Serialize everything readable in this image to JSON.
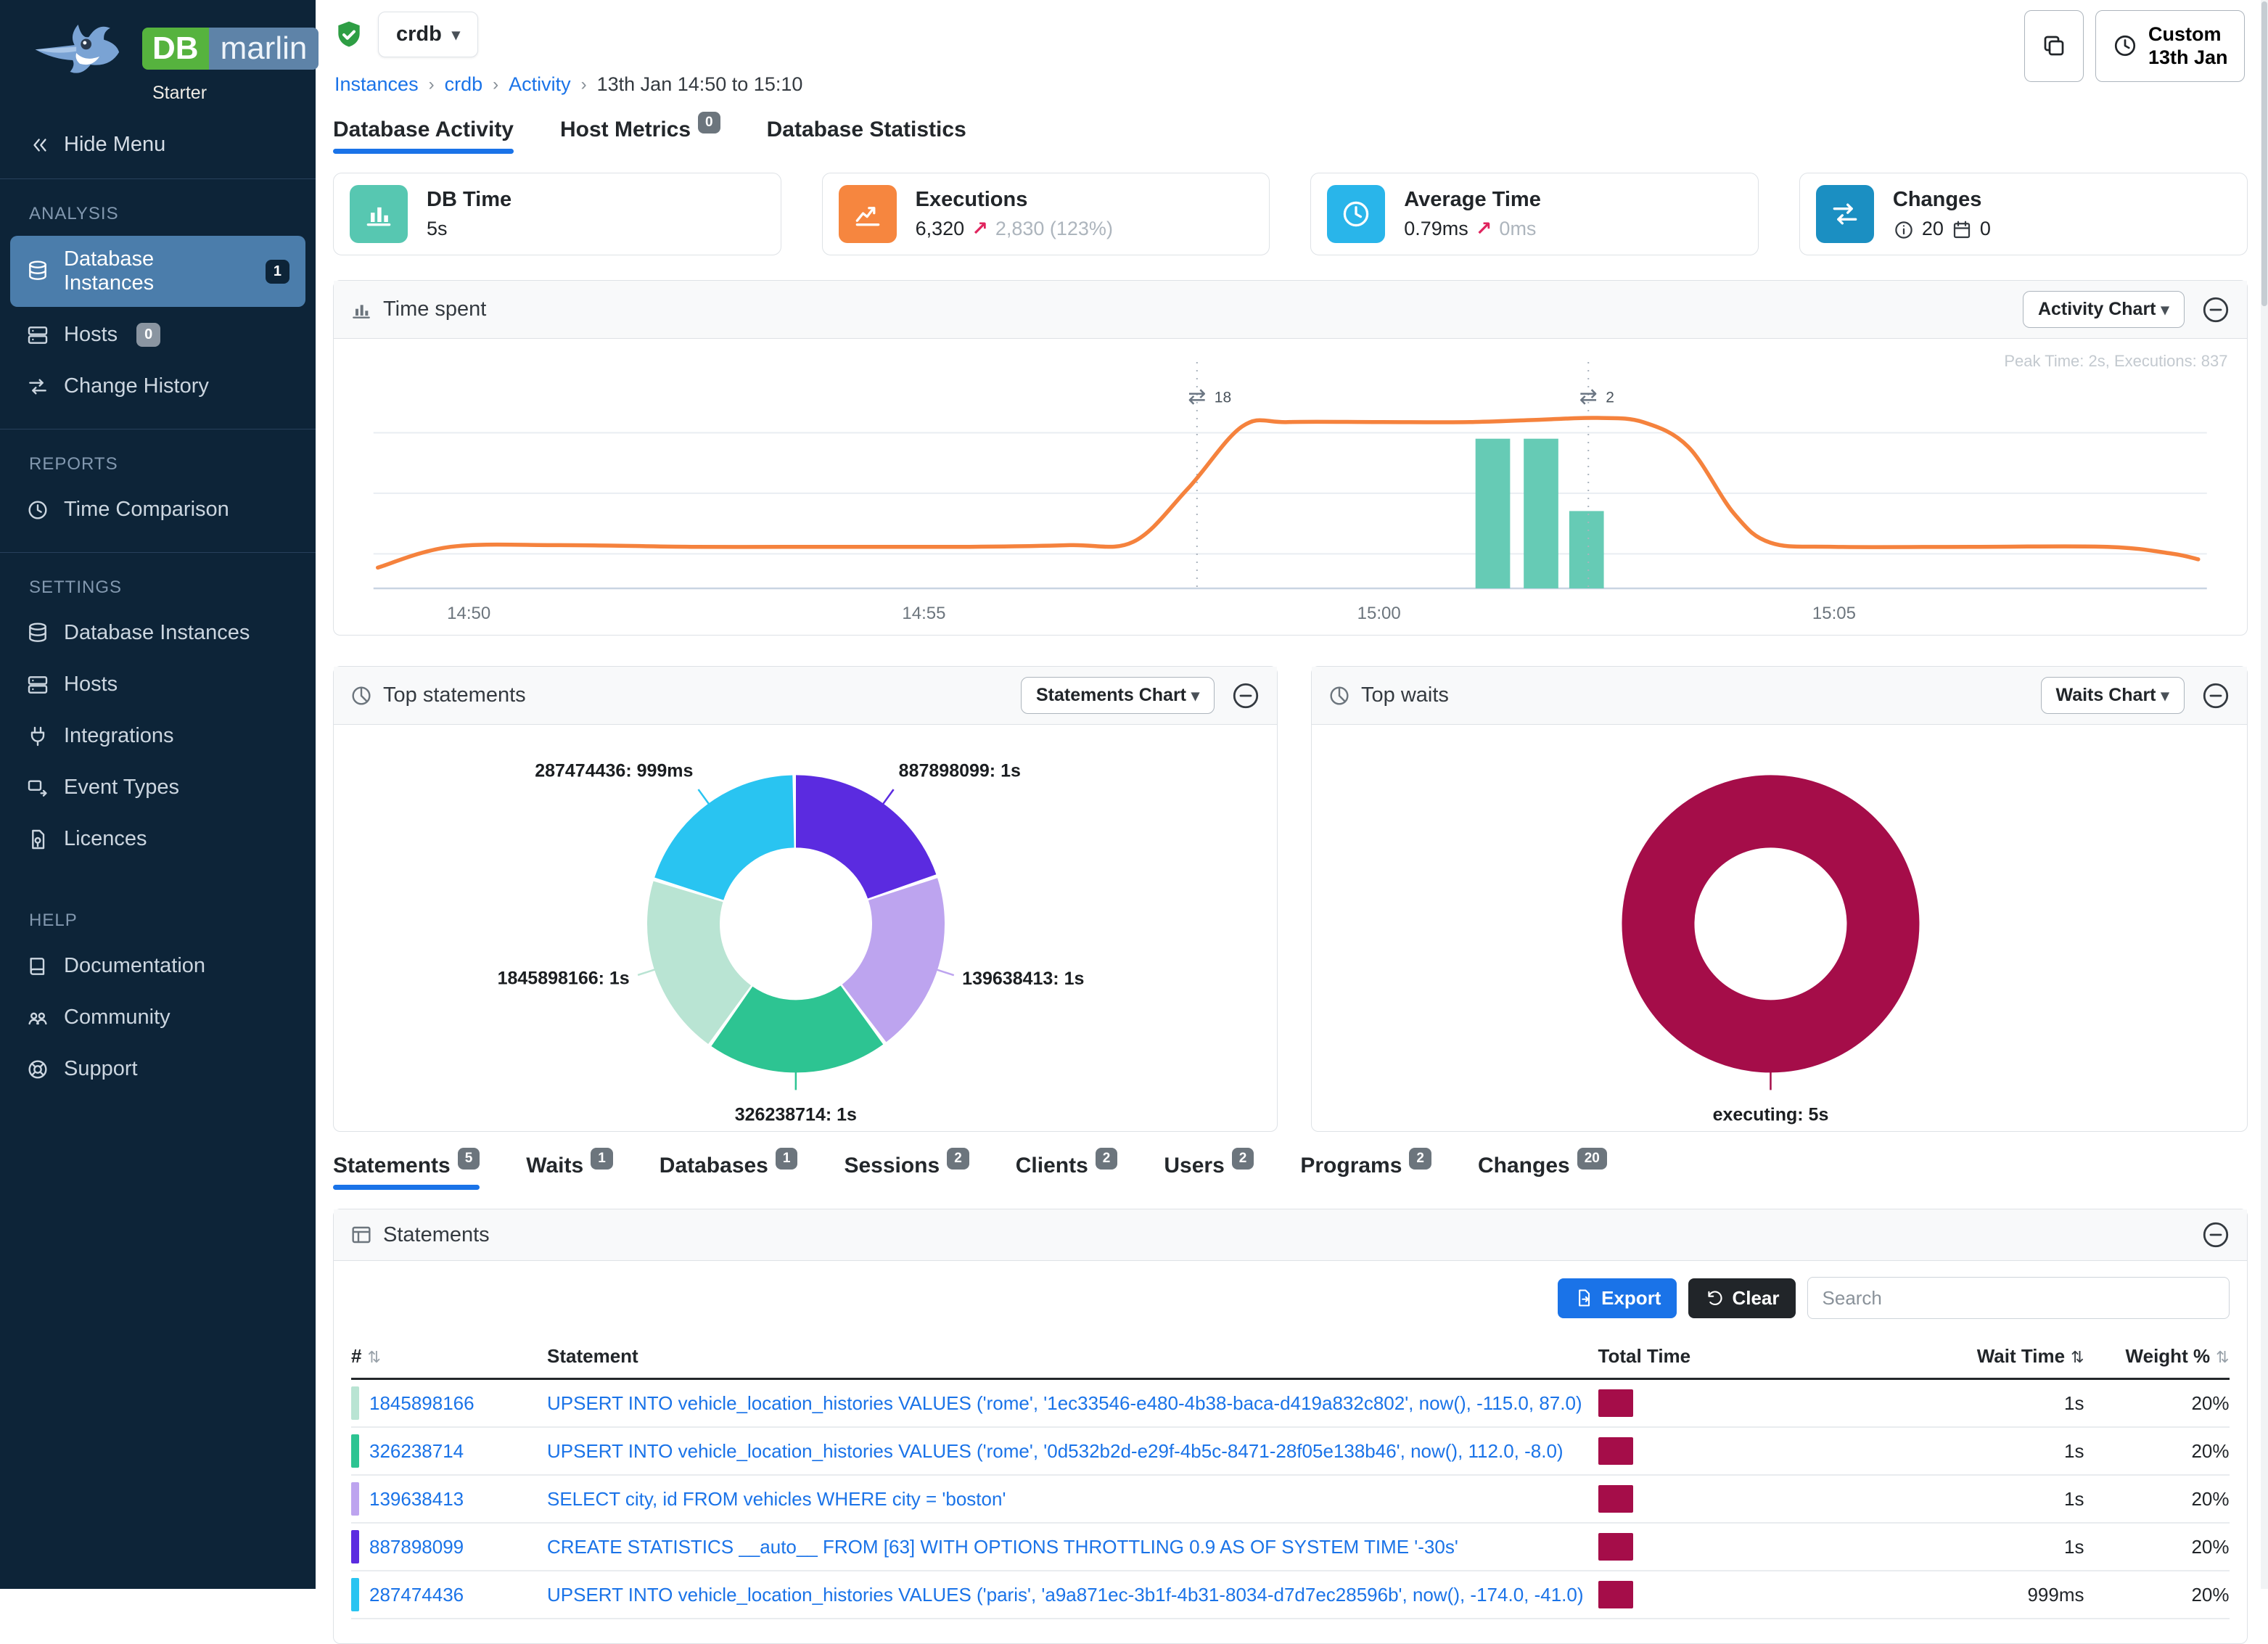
{
  "app": {
    "brand_db": "DB",
    "brand_marlin": "marlin",
    "tier": "Starter"
  },
  "colors": {
    "accent": "#1a73e8",
    "wait_maroon": "#a50d49",
    "line_orange": "#f5823d",
    "bar_teal": "#66cbb5",
    "sidebar_bg": "#0d2438",
    "active_item": "#4b7dab"
  },
  "sidebar": {
    "hide_menu_label": "Hide Menu",
    "sections": [
      {
        "title": "ANALYSIS",
        "divider_after": true,
        "items": [
          {
            "label": "Database Instances",
            "icon": "database",
            "badge": "1",
            "badge_style": "dark",
            "active": true
          },
          {
            "label": "Hosts",
            "icon": "server",
            "badge": "0",
            "badge_style": "gray"
          },
          {
            "label": "Change History",
            "icon": "swap"
          }
        ]
      },
      {
        "title": "REPORTS",
        "divider_after": true,
        "items": [
          {
            "label": "Time Comparison",
            "icon": "clock"
          }
        ]
      },
      {
        "title": "SETTINGS",
        "divider_after": false,
        "items": [
          {
            "label": "Database Instances",
            "icon": "database"
          },
          {
            "label": "Hosts",
            "icon": "server"
          },
          {
            "label": "Integrations",
            "icon": "plug"
          },
          {
            "label": "Event Types",
            "icon": "event"
          },
          {
            "label": "Licences",
            "icon": "licence"
          }
        ]
      },
      {
        "title": "HELP",
        "divider_after": false,
        "items": [
          {
            "label": "Documentation",
            "icon": "book"
          },
          {
            "label": "Community",
            "icon": "people"
          },
          {
            "label": "Support",
            "icon": "lifebuoy"
          }
        ]
      }
    ]
  },
  "topbar": {
    "instance": "crdb",
    "breadcrumb": [
      {
        "label": "Instances",
        "link": true
      },
      {
        "label": "crdb",
        "link": true
      },
      {
        "label": "Activity",
        "link": true
      },
      {
        "label": "13th Jan 14:50 to 15:10",
        "link": false
      }
    ],
    "custom_range_line1": "Custom",
    "custom_range_line2": "13th Jan"
  },
  "tabs": [
    {
      "label": "Database Activity",
      "active": true
    },
    {
      "label": "Host Metrics",
      "badge": "0"
    },
    {
      "label": "Database Statistics"
    }
  ],
  "cards": [
    {
      "title": "DB Time",
      "icon": "barchart",
      "icon_bg": "#57c7b1",
      "kind": "plain",
      "value": "5s"
    },
    {
      "title": "Executions",
      "icon": "linechart",
      "icon_bg": "#f6863f",
      "kind": "delta",
      "value": "6,320",
      "delta": "2,830 (123%)"
    },
    {
      "title": "Average Time",
      "icon": "clock",
      "icon_bg": "#29b5ea",
      "kind": "delta",
      "value": "0.79ms",
      "delta": "0ms"
    },
    {
      "title": "Changes",
      "icon": "swap",
      "icon_bg": "#1b8fc2",
      "kind": "changes",
      "info_count": "20",
      "calendar_count": "0"
    }
  ],
  "panels": {
    "time_spent": {
      "title": "Time spent",
      "button": "Activity Chart",
      "peak_note": "Peak Time: 2s, Executions: 837"
    },
    "top_statements": {
      "title": "Top statements",
      "button": "Statements Chart"
    },
    "top_waits": {
      "title": "Top waits",
      "button": "Waits Chart"
    }
  },
  "detail_tabs": [
    {
      "label": "Statements",
      "badge": "5",
      "active": true
    },
    {
      "label": "Waits",
      "badge": "1"
    },
    {
      "label": "Databases",
      "badge": "1"
    },
    {
      "label": "Sessions",
      "badge": "2"
    },
    {
      "label": "Clients",
      "badge": "2"
    },
    {
      "label": "Users",
      "badge": "2"
    },
    {
      "label": "Programs",
      "badge": "2"
    },
    {
      "label": "Changes",
      "badge": "20"
    }
  ],
  "statements_panel": {
    "title": "Statements",
    "export_label": "Export",
    "clear_label": "Clear",
    "search_placeholder": "Search",
    "columns": [
      "#",
      "Statement",
      "Total Time",
      "Wait Time",
      "Weight %"
    ],
    "rows": [
      {
        "id": "1845898166",
        "swatch": "#b9e4d3",
        "statement": "UPSERT INTO vehicle_location_histories VALUES ('rome', '1ec33546-e480-4b38-baca-d419a832c802', now(), -115.0, 87.0)",
        "total_time_frac": 1,
        "wait_time": "1s",
        "weight": "20%"
      },
      {
        "id": "326238714",
        "swatch": "#2dc492",
        "statement": "UPSERT INTO vehicle_location_histories VALUES ('rome', '0d532b2d-e29f-4b5c-8471-28f05e138b46', now(), 112.0, -8.0)",
        "total_time_frac": 1,
        "wait_time": "1s",
        "weight": "20%"
      },
      {
        "id": "139638413",
        "swatch": "#bda4ef",
        "statement": "SELECT city, id FROM vehicles WHERE city = 'boston'",
        "total_time_frac": 1,
        "wait_time": "1s",
        "weight": "20%"
      },
      {
        "id": "887898099",
        "swatch": "#5b2be0",
        "statement": "CREATE STATISTICS __auto__ FROM [63] WITH OPTIONS THROTTLING 0.9 AS OF SYSTEM TIME '-30s'",
        "total_time_frac": 1,
        "wait_time": "1s",
        "weight": "20%"
      },
      {
        "id": "287474436",
        "swatch": "#29c4f1",
        "statement": "UPSERT INTO vehicle_location_histories VALUES ('paris', 'a9a871ec-3b1f-4b31-8034-d7d7ec28596b', now(), -174.0, -41.0)",
        "total_time_frac": 0.999,
        "wait_time": "999ms",
        "weight": "20%"
      }
    ]
  },
  "chart_data": [
    {
      "type": "line",
      "title": "Time spent",
      "x_ticks": [
        {
          "label": "14:50",
          "t": 1
        },
        {
          "label": "14:55",
          "t": 6
        },
        {
          "label": "15:00",
          "t": 11
        },
        {
          "label": "15:05",
          "t": 16
        }
      ],
      "x_range": [
        0,
        20
      ],
      "ylim": [
        0,
        2.6
      ],
      "grid": true,
      "series": [
        {
          "name": "DB Time (s)",
          "color": "#f5823d",
          "points": [
            [
              0,
              0.25
            ],
            [
              0.8,
              0.5
            ],
            [
              2,
              0.52
            ],
            [
              3.5,
              0.5
            ],
            [
              5,
              0.5
            ],
            [
              6.5,
              0.5
            ],
            [
              7.6,
              0.52
            ],
            [
              8.3,
              0.56
            ],
            [
              8.9,
              1.2
            ],
            [
              9.5,
              1.95
            ],
            [
              10,
              2.0
            ],
            [
              11,
              2.0
            ],
            [
              12,
              2.0
            ],
            [
              12.8,
              2.03
            ],
            [
              13.4,
              2.05
            ],
            [
              13.9,
              2.0
            ],
            [
              14.4,
              1.7
            ],
            [
              14.9,
              0.9
            ],
            [
              15.3,
              0.55
            ],
            [
              16,
              0.5
            ],
            [
              17.5,
              0.5
            ],
            [
              19,
              0.5
            ],
            [
              19.7,
              0.42
            ],
            [
              20,
              0.35
            ]
          ]
        }
      ],
      "bars": {
        "name": "Executions",
        "color": "#66cbb5",
        "width": 0.38,
        "values": [
          [
            12.25,
            1.8
          ],
          [
            12.78,
            1.8
          ],
          [
            13.28,
            0.93
          ]
        ]
      },
      "annotations": [
        {
          "t": 9.0,
          "label": "18"
        },
        {
          "t": 13.3,
          "label": "2"
        }
      ],
      "peak_note": "Peak Time: 2s, Executions: 837"
    },
    {
      "type": "donut",
      "title": "Top statements",
      "slices": [
        {
          "label": "887898099",
          "value": 1.0,
          "value_label": "1s",
          "color": "#5b2be0"
        },
        {
          "label": "139638413",
          "value": 1.0,
          "value_label": "1s",
          "color": "#bda4ef"
        },
        {
          "label": "326238714",
          "value": 1.0,
          "value_label": "1s",
          "color": "#2dc492"
        },
        {
          "label": "1845898166",
          "value": 1.0,
          "value_label": "1s",
          "color": "#b9e4d3"
        },
        {
          "label": "287474436",
          "value": 0.999,
          "value_label": "999ms",
          "color": "#29c4f1"
        }
      ]
    },
    {
      "type": "donut",
      "title": "Top waits",
      "slices": [
        {
          "label": "executing",
          "value": 5,
          "value_label": "5s",
          "color": "#a50d49"
        }
      ]
    }
  ]
}
